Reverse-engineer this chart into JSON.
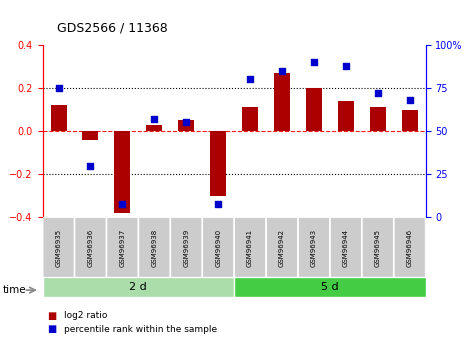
{
  "title": "GDS2566 / 11368",
  "samples": [
    "GSM96935",
    "GSM96936",
    "GSM96937",
    "GSM96938",
    "GSM96939",
    "GSM96940",
    "GSM96941",
    "GSM96942",
    "GSM96943",
    "GSM96944",
    "GSM96945",
    "GSM96946"
  ],
  "log2_ratio": [
    0.12,
    -0.04,
    -0.38,
    0.03,
    0.05,
    -0.3,
    0.11,
    0.27,
    0.2,
    0.14,
    0.11,
    0.1
  ],
  "percentile_rank": [
    75,
    30,
    8,
    57,
    55,
    8,
    80,
    85,
    90,
    88,
    72,
    68
  ],
  "groups": [
    {
      "label": "2 d",
      "start": 0,
      "end": 6,
      "color": "#aaddaa"
    },
    {
      "label": "5 d",
      "start": 6,
      "end": 12,
      "color": "#44cc44"
    }
  ],
  "ylim_left": [
    -0.4,
    0.4
  ],
  "ylim_right": [
    0,
    100
  ],
  "bar_color": "#AA0000",
  "dot_color": "#0000CC",
  "background_color": "#ffffff",
  "legend": [
    {
      "label": "log2 ratio",
      "color": "#AA0000"
    },
    {
      "label": "percentile rank within the sample",
      "color": "#0000CC"
    }
  ]
}
